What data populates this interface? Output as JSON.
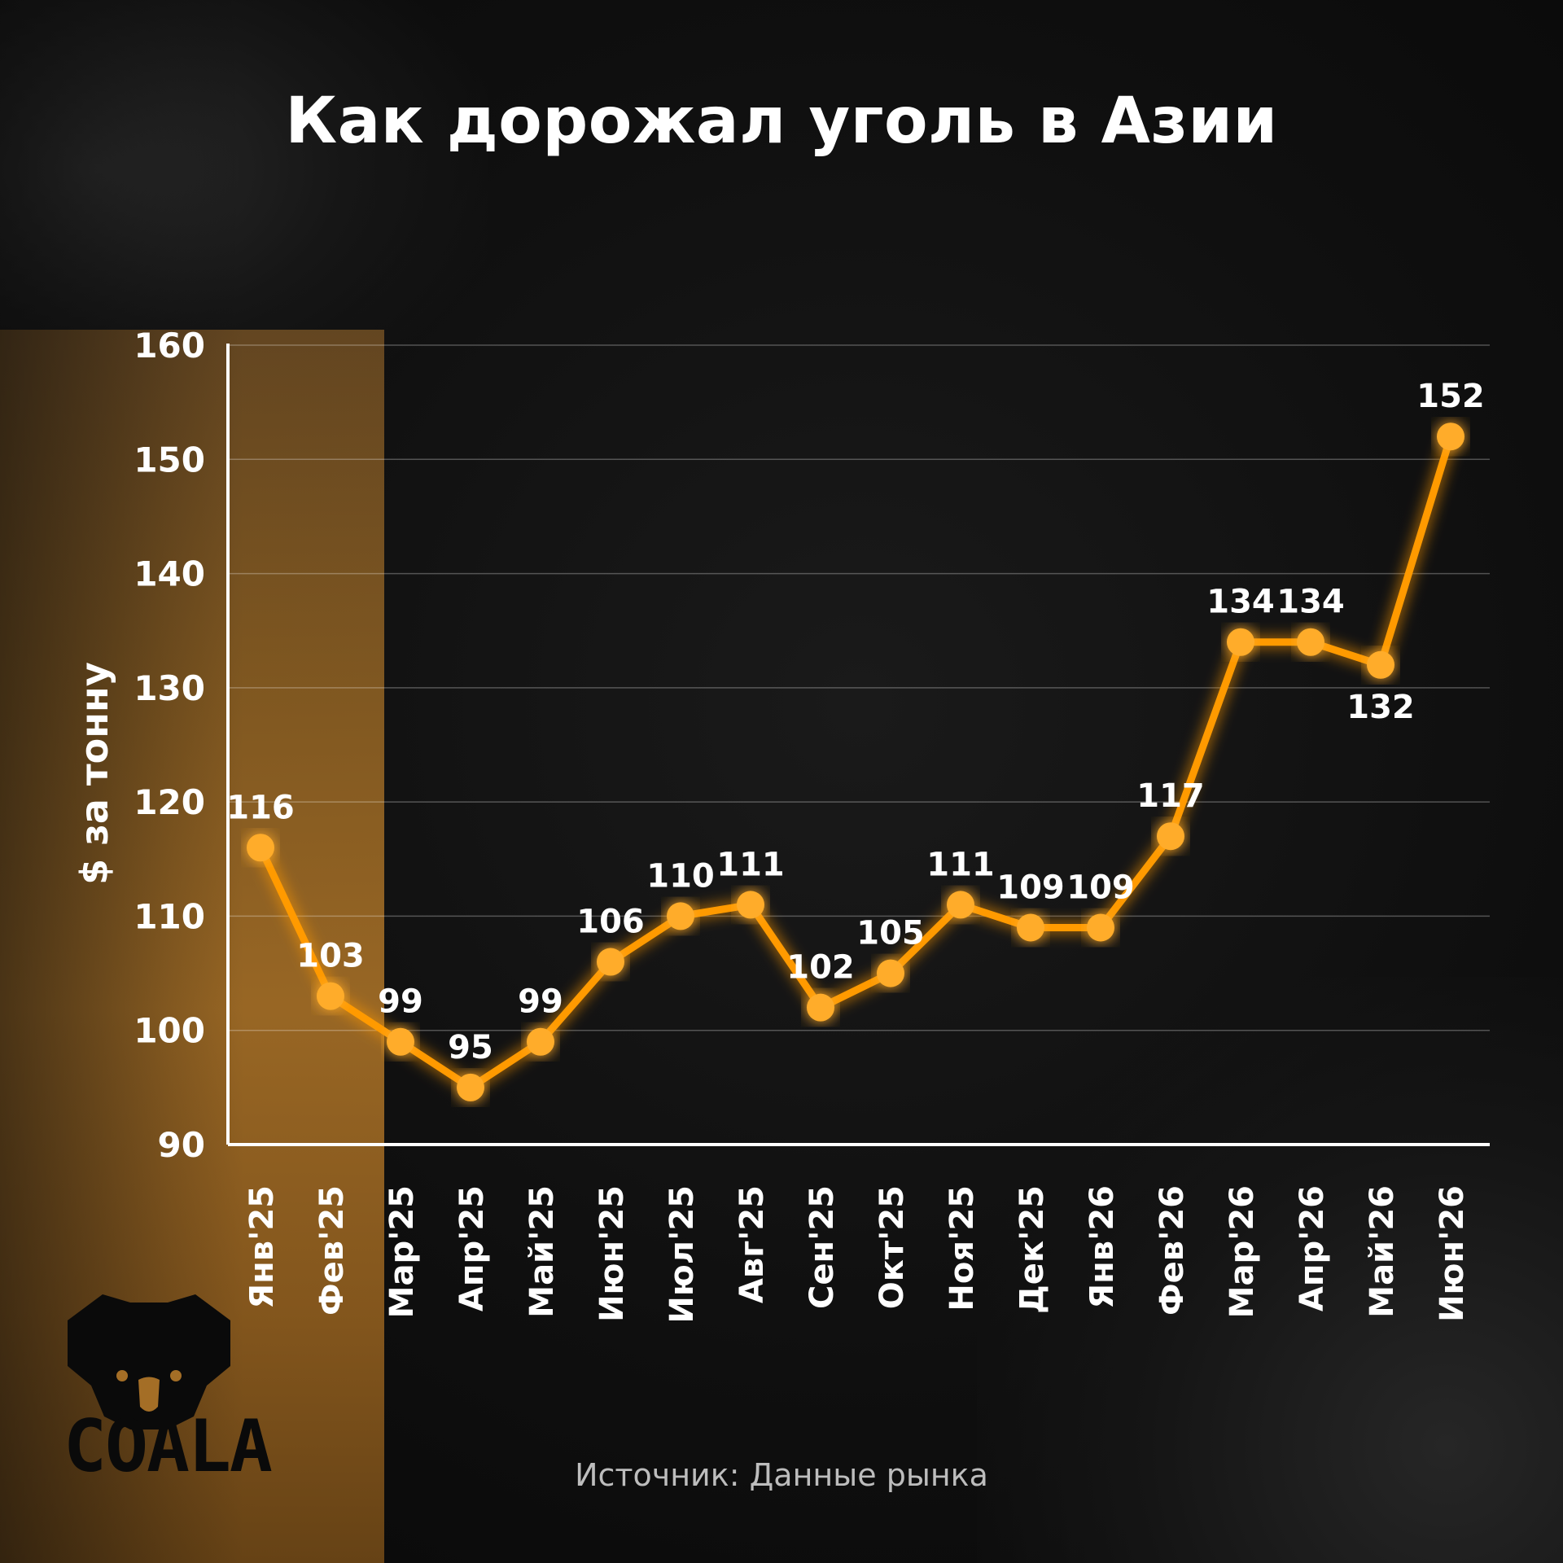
{
  "title": "Как дорожал уголь в Азии",
  "source": "Источник: Данные рынка",
  "logo": {
    "text": "COALA",
    "icon": "koala-head-icon"
  },
  "colors": {
    "line": "#ffa51f",
    "marker": "#ffac2a",
    "glow": "#ff9a00",
    "background": "#0b0b0b",
    "strip": "#a46e26"
  },
  "chart_data": {
    "type": "line",
    "title": "Как дорожал уголь в Азии",
    "ylabel": "$ за тонну",
    "xlabel": "",
    "ylim": [
      90,
      160
    ],
    "yticks": [
      90,
      100,
      110,
      120,
      130,
      140,
      150,
      160
    ],
    "grid": true,
    "categories": [
      "Янв'25",
      "Фев'25",
      "Мар'25",
      "Апр'25",
      "Май'25",
      "Июн'25",
      "Июл'25",
      "Авг'25",
      "Сен'25",
      "Окт'25",
      "Ноя'25",
      "Дек'25",
      "Янв'26",
      "Фев'26",
      "Мар'26",
      "Апр'26",
      "Май'26",
      "Июн'26"
    ],
    "values": [
      116,
      103,
      99,
      95,
      99,
      106,
      110,
      111,
      102,
      105,
      111,
      109,
      109,
      117,
      134,
      134,
      132,
      152
    ]
  }
}
